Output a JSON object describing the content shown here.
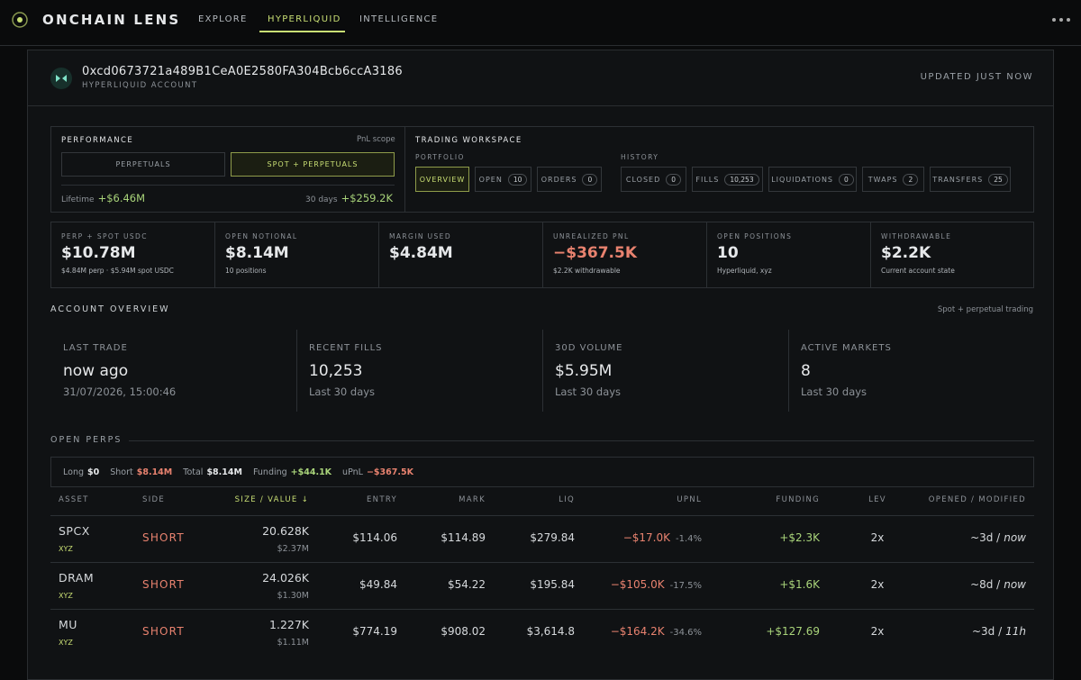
{
  "nav": {
    "brand": "ONCHAIN LENS",
    "links": [
      "EXPLORE",
      "HYPERLIQUID",
      "INTELLIGENCE"
    ],
    "active": 1
  },
  "account": {
    "address": "0xcd0673721a489B1CeA0E2580FA304Bcb6ccA3186",
    "subtitle": "HYPERLIQUID ACCOUNT",
    "status": "UPDATED JUST NOW"
  },
  "performance": {
    "title": "PERFORMANCE",
    "scope": "PnL scope",
    "buttons": [
      "PERPETUALS",
      "SPOT + PERPETUALS"
    ],
    "active": 1,
    "lifetime_label": "Lifetime",
    "lifetime_value": "+$6.46M",
    "period_label": "30 days",
    "period_value": "+$259.2K"
  },
  "workspace": {
    "title": "TRADING WORKSPACE",
    "portfolio_label": "PORTFOLIO",
    "portfolio_tabs": [
      {
        "label": "OVERVIEW"
      },
      {
        "label": "OPEN",
        "count": "10"
      },
      {
        "label": "ORDERS",
        "count": "0"
      }
    ],
    "history_label": "HISTORY",
    "history_tabs": [
      {
        "label": "CLOSED",
        "count": "0"
      },
      {
        "label": "FILLS",
        "count": "10,253"
      },
      {
        "label": "LIQUIDATIONS",
        "count": "0"
      },
      {
        "label": "TWAPS",
        "count": "2"
      },
      {
        "label": "TRANSFERS",
        "count": "25"
      }
    ]
  },
  "stats": [
    {
      "label": "PERP + SPOT USDC",
      "value": "$10.78M",
      "note": "$4.84M perp · $5.94M spot USDC"
    },
    {
      "label": "OPEN NOTIONAL",
      "value": "$8.14M",
      "note": "10 positions"
    },
    {
      "label": "MARGIN USED",
      "value": "$4.84M"
    },
    {
      "label": "UNREALIZED PNL",
      "value": "−$367.5K",
      "note": "$2.2K withdrawable",
      "negative": true
    },
    {
      "label": "OPEN POSITIONS",
      "value": "10",
      "note": "Hyperliquid, xyz"
    },
    {
      "label": "WITHDRAWABLE",
      "value": "$2.2K",
      "note": "Current account state"
    }
  ],
  "overview": {
    "title": "ACCOUNT OVERVIEW",
    "note": "Spot + perpetual trading",
    "cards": [
      {
        "label": "LAST TRADE",
        "value": "now ago",
        "note": "31/07/2026, 15:00:46"
      },
      {
        "label": "RECENT FILLS",
        "value": "10,253",
        "note": "Last 30 days"
      },
      {
        "label": "30D VOLUME",
        "value": "$5.95M",
        "note": "Last 30 days"
      },
      {
        "label": "ACTIVE MARKETS",
        "value": "8",
        "note": "Last 30 days"
      }
    ]
  },
  "perps": {
    "title": "OPEN PERPS",
    "summary": [
      {
        "label": "Long",
        "value": "$0"
      },
      {
        "label": "Short",
        "value": "$8.14M",
        "tone": "neg"
      },
      {
        "label": "Total",
        "value": "$8.14M"
      },
      {
        "label": "Funding",
        "value": "+$44.1K",
        "tone": "pos"
      },
      {
        "label": "uPnL",
        "value": "−$367.5K",
        "tone": "neg"
      }
    ],
    "headers": [
      "ASSET",
      "SIDE",
      "SIZE / VALUE ↓",
      "ENTRY",
      "MARK",
      "LIQ",
      "UPNL",
      "FUNDING",
      "LEV",
      "OPENED / MODIFIED"
    ],
    "rows": [
      {
        "asset": "SPCX",
        "chain": "XYZ",
        "side": "SHORT",
        "size": "20.628K",
        "value": "$2.37M",
        "entry": "$114.06",
        "mark": "$114.89",
        "liq": "$279.84",
        "upnl": "−$17.0K",
        "upnl_pct": "-1.4%",
        "funding": "+$2.3K",
        "lev": "2x",
        "opened": "~3d /",
        "modified": "now"
      },
      {
        "asset": "DRAM",
        "chain": "XYZ",
        "side": "SHORT",
        "size": "24.026K",
        "value": "$1.30M",
        "entry": "$49.84",
        "mark": "$54.22",
        "liq": "$195.84",
        "upnl": "−$105.0K",
        "upnl_pct": "-17.5%",
        "funding": "+$1.6K",
        "lev": "2x",
        "opened": "~8d /",
        "modified": "now"
      },
      {
        "asset": "MU",
        "chain": "XYZ",
        "side": "SHORT",
        "size": "1.227K",
        "value": "$1.11M",
        "entry": "$774.19",
        "mark": "$908.02",
        "liq": "$3,614.8",
        "upnl": "−$164.2K",
        "upnl_pct": "-34.6%",
        "funding": "+$127.69",
        "lev": "2x",
        "opened": "~3d /",
        "modified": "11h"
      }
    ]
  }
}
